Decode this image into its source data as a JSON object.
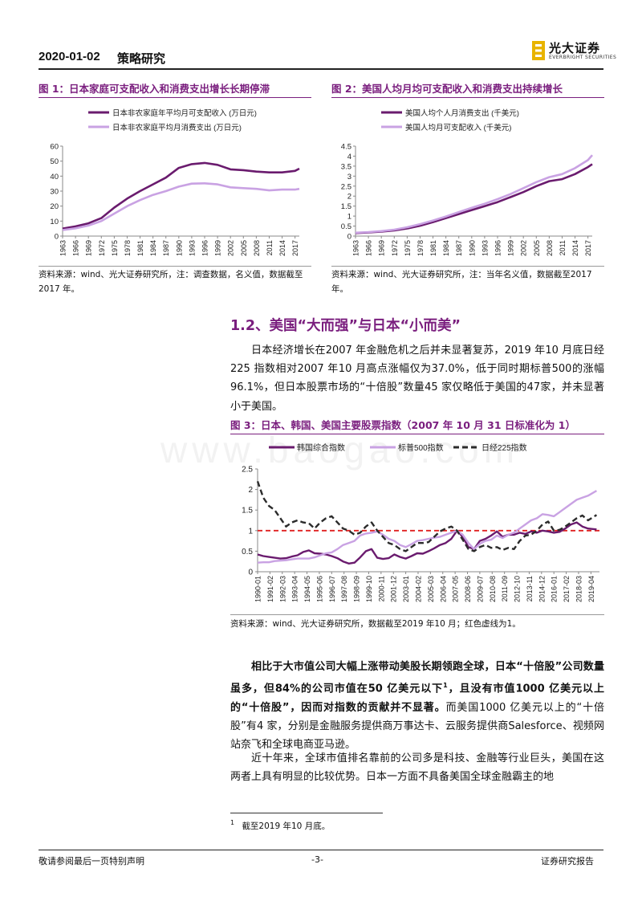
{
  "header": {
    "date": "2020-01-02",
    "doc_type": "策略研究",
    "logo_cn": "光大证券",
    "logo_en": "EVERBRIGHT SECURITIES"
  },
  "figures": [
    {
      "title": "图 1：日本家庭可支配收入和消费支出增长长期停滞",
      "source": "资料来源：wind、光大证券研究所，注：调查数据，名义值，数据截至2017 年。",
      "chart_data": {
        "type": "line",
        "title": "",
        "x": [
          1963,
          1966,
          1969,
          1972,
          1975,
          1978,
          1981,
          1984,
          1987,
          1990,
          1993,
          1996,
          1999,
          2002,
          2005,
          2008,
          2011,
          2014,
          2017,
          2018
        ],
        "x_tick_labels": [
          "1963",
          "1966",
          "1969",
          "1972",
          "1975",
          "1978",
          "1981",
          "1984",
          "1987",
          "1990",
          "1993",
          "1996",
          "1999",
          "2002",
          "2005",
          "2008",
          "2011",
          "2014",
          "2017"
        ],
        "ylim": [
          0,
          60
        ],
        "y_ticks": [
          "0",
          "10",
          "20",
          "30",
          "40",
          "50",
          "60"
        ],
        "legend_position": "top-left",
        "series": [
          {
            "name": "日本非农家庭年平均月可支配收入 (万日元)",
            "color": "#6a1b6e",
            "values": [
              5,
              6.5,
              8.5,
              12,
              19,
              25,
              30,
              34.5,
              39,
              45.5,
              48,
              48.8,
              47.5,
              44.5,
              44,
              43,
              42.5,
              42.5,
              43.5,
              45
            ]
          },
          {
            "name": "日本非农家庭平均月消费支出 (万日元)",
            "color": "#c9a2e3",
            "values": [
              4,
              5.2,
              7,
              10,
              15,
              20,
              24,
              27.5,
              30,
              33,
              35,
              35.2,
              34.5,
              32.5,
              32,
              31.5,
              30.5,
              31,
              31,
              31.5
            ]
          }
        ]
      }
    },
    {
      "title": "图 2：美国人均月均可支配收入和消费支出持续增长",
      "source": "资料来源：wind、光大证券研究所，注：当年名义值，数据截至2017 年。",
      "chart_data": {
        "type": "line",
        "title": "",
        "x": [
          1963,
          1966,
          1969,
          1972,
          1975,
          1978,
          1981,
          1984,
          1987,
          1990,
          1993,
          1996,
          1999,
          2002,
          2005,
          2008,
          2011,
          2014,
          2017,
          2018
        ],
        "x_tick_labels": [
          "1963",
          "1966",
          "1969",
          "1972",
          "1975",
          "1978",
          "1981",
          "1984",
          "1987",
          "1990",
          "1993",
          "1996",
          "1999",
          "2002",
          "2005",
          "2008",
          "2011",
          "2014",
          "2017"
        ],
        "ylim": [
          0,
          4.5
        ],
        "y_ticks": [
          "0",
          "0.5",
          "1",
          "1.5",
          "2",
          "2.5",
          "3",
          "3.5",
          "4",
          "4.5"
        ],
        "legend_position": "top-left",
        "series": [
          {
            "name": "美国人均个人月消费支出 (千美元)",
            "color": "#6a1b6e",
            "values": [
              0.15,
              0.18,
              0.22,
              0.28,
              0.38,
              0.52,
              0.7,
              0.9,
              1.1,
              1.3,
              1.5,
              1.7,
              1.95,
              2.2,
              2.5,
              2.75,
              2.85,
              3.1,
              3.45,
              3.6
            ]
          },
          {
            "name": "美国人均月可支配收入 (千美元)",
            "color": "#c9a2e3",
            "values": [
              0.17,
              0.2,
              0.25,
              0.32,
              0.44,
              0.6,
              0.78,
              0.98,
              1.2,
              1.42,
              1.62,
              1.85,
              2.1,
              2.4,
              2.7,
              2.95,
              3.1,
              3.4,
              3.8,
              4.05
            ]
          }
        ]
      }
    },
    {
      "title": "图 3：日本、韩国、美国主要股票指数（2007 年 10 月 31 日标准化为 1）",
      "source": "资料来源：wind、光大证券研究所，数据截至2019 年10 月；红色虚线为1。",
      "chart_data": {
        "type": "line",
        "title": "",
        "x_tick_labels": [
          "1990-01",
          "1991-02",
          "1992-03",
          "1993-04",
          "1994-05",
          "1995-06",
          "1996-07",
          "1997-08",
          "1998-09",
          "1999-10",
          "2000-11",
          "2001-12",
          "2003-01",
          "2004-02",
          "2005-03",
          "2006-04",
          "2007-05",
          "2008-06",
          "2009-07",
          "2010-08",
          "2011-09",
          "2012-10",
          "2013-11",
          "2014-12",
          "2016-01",
          "2017-02",
          "2018-03",
          "2019-04"
        ],
        "x": [
          1990.0,
          1990.5,
          1991.0,
          1991.5,
          1992.0,
          1992.5,
          1993.0,
          1993.5,
          1994.0,
          1994.5,
          1995.0,
          1995.5,
          1996.0,
          1996.5,
          1997.0,
          1997.5,
          1998.0,
          1998.5,
          1999.0,
          1999.5,
          2000.0,
          2000.5,
          2001.0,
          2001.5,
          2002.0,
          2002.5,
          2003.0,
          2003.5,
          2004.0,
          2004.5,
          2005.0,
          2005.5,
          2006.0,
          2006.5,
          2007.0,
          2007.5,
          2008.0,
          2008.5,
          2009.0,
          2009.5,
          2010.0,
          2010.5,
          2011.0,
          2011.5,
          2012.0,
          2012.5,
          2013.0,
          2013.5,
          2014.0,
          2014.5,
          2015.0,
          2015.5,
          2016.0,
          2016.5,
          2017.0,
          2017.5,
          2018.0,
          2018.5,
          2019.0,
          2019.75
        ],
        "ylim": [
          0,
          2.5
        ],
        "y_ticks": [
          "0",
          "0.5",
          "1",
          "1.5",
          "2",
          "2.5"
        ],
        "reference_line": 1,
        "reference_color": "#e02020",
        "legend_position": "top",
        "series": [
          {
            "name": "韩国综合指数",
            "color": "#6a1b6e",
            "style": "solid",
            "values": [
              0.42,
              0.38,
              0.36,
              0.34,
              0.32,
              0.33,
              0.37,
              0.4,
              0.48,
              0.52,
              0.45,
              0.44,
              0.42,
              0.38,
              0.33,
              0.25,
              0.2,
              0.22,
              0.35,
              0.5,
              0.55,
              0.34,
              0.31,
              0.33,
              0.42,
              0.36,
              0.32,
              0.38,
              0.45,
              0.44,
              0.5,
              0.57,
              0.65,
              0.7,
              0.8,
              1.0,
              0.85,
              0.6,
              0.55,
              0.75,
              0.8,
              0.88,
              0.98,
              0.85,
              0.9,
              0.9,
              0.95,
              0.92,
              0.98,
              0.95,
              1.0,
              0.98,
              0.95,
              0.97,
              1.05,
              1.15,
              1.2,
              1.1,
              1.05,
              1.03
            ]
          },
          {
            "name": "标普500指数",
            "color": "#c9a2e3",
            "style": "solid",
            "values": [
              0.22,
              0.23,
              0.23,
              0.26,
              0.27,
              0.28,
              0.3,
              0.32,
              0.32,
              0.32,
              0.35,
              0.4,
              0.45,
              0.47,
              0.55,
              0.65,
              0.7,
              0.75,
              0.88,
              0.93,
              0.95,
              0.98,
              0.9,
              0.8,
              0.75,
              0.65,
              0.6,
              0.67,
              0.75,
              0.77,
              0.8,
              0.83,
              0.85,
              0.9,
              0.95,
              1.0,
              0.9,
              0.7,
              0.55,
              0.68,
              0.75,
              0.78,
              0.88,
              0.82,
              0.9,
              0.95,
              1.05,
              1.15,
              1.25,
              1.3,
              1.4,
              1.38,
              1.35,
              1.45,
              1.55,
              1.65,
              1.75,
              1.8,
              1.85,
              1.97
            ]
          },
          {
            "name": "日经225指数",
            "color": "#2b2b2b",
            "style": "dashed",
            "values": [
              2.2,
              1.8,
              1.6,
              1.5,
              1.3,
              1.1,
              1.2,
              1.25,
              1.2,
              1.18,
              1.05,
              1.2,
              1.3,
              1.35,
              1.2,
              1.05,
              1.0,
              0.9,
              0.95,
              1.1,
              1.2,
              1.0,
              0.85,
              0.7,
              0.65,
              0.55,
              0.5,
              0.6,
              0.7,
              0.7,
              0.72,
              0.85,
              0.98,
              1.05,
              1.1,
              1.0,
              0.78,
              0.55,
              0.5,
              0.6,
              0.65,
              0.58,
              0.6,
              0.53,
              0.58,
              0.55,
              0.75,
              0.88,
              0.9,
              1.0,
              1.15,
              1.22,
              1.0,
              1.02,
              1.1,
              1.2,
              1.3,
              1.37,
              1.25,
              1.38
            ]
          }
        ]
      }
    }
  ],
  "section": {
    "title": "1.2、美国“大而强”与日本“小而美”",
    "para1": "日本经济增长在2007 年金融危机之后并未显著复苏，2019 年10 月底日经225 指数相对2007 年10 月高点涨幅仅为37.0%，低于同时期标普500的涨幅96.1%，但日本股票市场的“十倍股”数量45 家仅略低于美国的47家，并未显著小于美国。",
    "para2_bold_a": "相比于大市值公司大幅上涨带动美股长期领跑全球，日本“十倍股”公司数量虽多，但84%的公司市值在50 亿美元以下",
    "para2_sup": "1",
    "para2_bold_b": "，且没有市值1000 亿美元以上的“十倍股”，因而对指数的贡献并不显著。",
    "para2_rest": "而美国1000 亿美元以上的“十倍股”有4 家，分别是金融服务提供商万事达卡、云服务提供商Salesforce、视频网站奈飞和全球电商亚马逊。",
    "para3": "近十年来，全球市值排名靠前的公司多是科技、金融等行业巨头，美国在这两者上具有明显的比较优势。日本一方面不具备美国全球金融霸主的地"
  },
  "footnote": {
    "num": "1",
    "text": "截至2019 年10 月底。"
  },
  "footer": {
    "left": "敬请参阅最后一页特别声明",
    "center": "-3-",
    "right": "证券研究报告"
  },
  "watermark": "www.baogao.com"
}
